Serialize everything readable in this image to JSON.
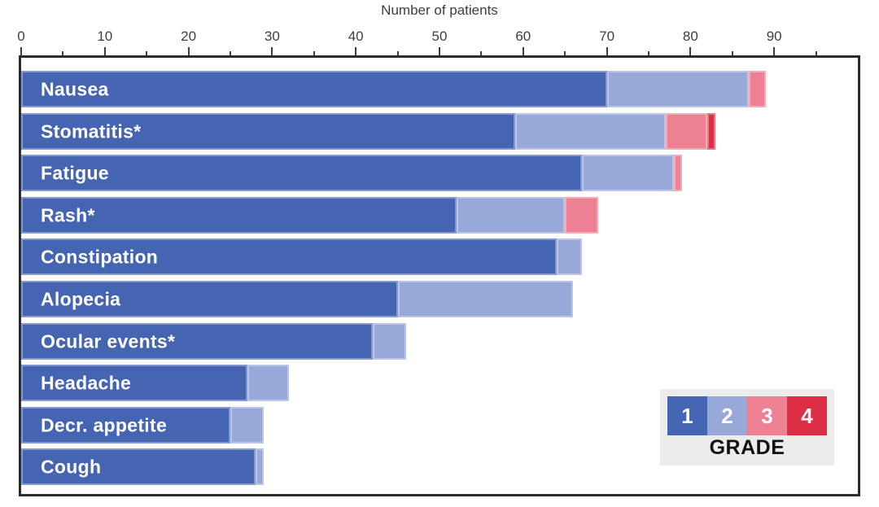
{
  "axis": {
    "title": "Number of patients",
    "min": 0,
    "max": 100,
    "major_ticks": [
      0,
      10,
      20,
      30,
      40,
      50,
      60,
      70,
      80,
      90
    ],
    "minor_ticks": [
      5,
      15,
      25,
      35,
      45,
      55,
      65,
      75,
      85,
      95
    ],
    "tick_color": "#3d3d3d"
  },
  "legend": {
    "title": "GRADE",
    "background": "#ececec",
    "grades": [
      {
        "label": "1",
        "color": "#4565b2"
      },
      {
        "label": "2",
        "color": "#97a8d9"
      },
      {
        "label": "3",
        "color": "#ee8093"
      },
      {
        "label": "4",
        "color": "#dc2e45"
      }
    ]
  },
  "frame_color": "#2b2b2b",
  "chart_data": {
    "type": "bar",
    "orientation": "horizontal",
    "stacked": true,
    "title": "Number of patients",
    "xlabel": "Number of patients",
    "ylabel": "",
    "xlim": [
      0,
      100
    ],
    "grid": false,
    "legend_position": "bottom-right",
    "categories": [
      "Nausea",
      "Stomatitis*",
      "Fatigue",
      "Rash*",
      "Constipation",
      "Alopecia",
      "Ocular events*",
      "Headache",
      "Decr. appetite",
      "Cough"
    ],
    "series": [
      {
        "name": "Grade 1",
        "color": "#4565b2",
        "values": [
          70,
          59,
          67,
          52,
          64,
          45,
          42,
          27,
          25,
          28
        ]
      },
      {
        "name": "Grade 2",
        "color": "#97a8d9",
        "values": [
          17,
          18,
          11,
          13,
          3,
          21,
          4,
          5,
          4,
          1
        ]
      },
      {
        "name": "Grade 3",
        "color": "#ee8093",
        "values": [
          2,
          5,
          1,
          4,
          0,
          0,
          0,
          0,
          0,
          0
        ]
      },
      {
        "name": "Grade 4",
        "color": "#dc2e45",
        "values": [
          0,
          1,
          0,
          0,
          0,
          0,
          0,
          0,
          0,
          0
        ]
      }
    ],
    "totals": [
      89,
      83,
      79,
      69,
      67,
      66,
      46,
      32,
      29,
      29
    ]
  }
}
